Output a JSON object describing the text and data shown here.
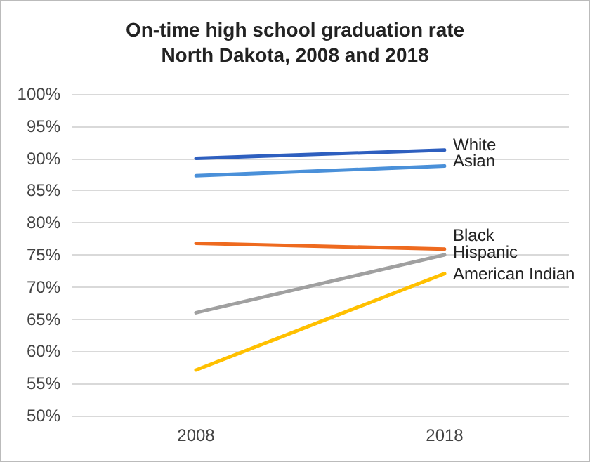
{
  "chart_data": {
    "type": "line",
    "title": "On-time high school graduation rate\nNorth Dakota, 2008 and 2018",
    "categories": [
      "2008",
      "2018"
    ],
    "series": [
      {
        "name": "White",
        "color": "#2e5fbf",
        "values": [
          90,
          91.3
        ]
      },
      {
        "name": "Asian",
        "color": "#4a90d9",
        "values": [
          87.3,
          88.8
        ]
      },
      {
        "name": "Black",
        "color": "#ee6a1f",
        "values": [
          76.8,
          75.9
        ]
      },
      {
        "name": "Hispanic",
        "color": "#a0a0a0",
        "values": [
          66,
          75
        ]
      },
      {
        "name": "American Indian",
        "color": "#ffc000",
        "values": [
          57.1,
          72.1
        ]
      }
    ],
    "ylim": [
      50,
      100
    ],
    "yticks": [
      {
        "value": 50,
        "label": "50%"
      },
      {
        "value": 55,
        "label": "55%"
      },
      {
        "value": 60,
        "label": "60%"
      },
      {
        "value": 65,
        "label": "65%"
      },
      {
        "value": 70,
        "label": "70%"
      },
      {
        "value": 75,
        "label": "75%"
      },
      {
        "value": 80,
        "label": "80%"
      },
      {
        "value": 85,
        "label": "85%"
      },
      {
        "value": 90,
        "label": "90%"
      },
      {
        "value": 95,
        "label": "95%"
      },
      {
        "value": 100,
        "label": "100%"
      }
    ],
    "grid": "y",
    "marker": "none",
    "line_style": "solid",
    "legend": false
  }
}
